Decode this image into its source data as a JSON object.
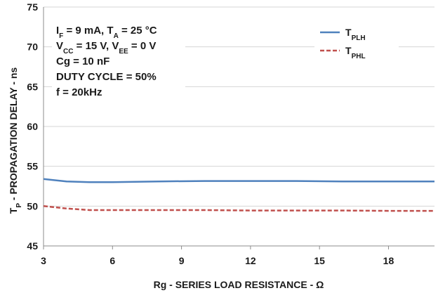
{
  "chart_data": {
    "type": "line",
    "xlabel": "Rg - SERIES LOAD RESISTANCE - Ω",
    "ylabel": {
      "main": "T",
      "sub": "P",
      "rest": " - PROPAGATION DELAY - ns"
    },
    "xlim": [
      3,
      20
    ],
    "ylim": [
      45,
      75
    ],
    "x_ticks": [
      3,
      6,
      9,
      12,
      15,
      18
    ],
    "y_ticks": [
      45,
      50,
      55,
      60,
      65,
      70,
      75
    ],
    "grid": "horizontal",
    "legend_position": "top-right",
    "annotations": [
      [
        {
          "t": "I"
        },
        {
          "t": "F",
          "sub": true
        },
        {
          "t": " = 9 mA, T"
        },
        {
          "t": "A",
          "sub": true
        },
        {
          "t": " = 25 °C"
        }
      ],
      [
        {
          "t": "V"
        },
        {
          "t": "CC",
          "sub": true
        },
        {
          "t": " = 15 V, V"
        },
        {
          "t": "EE",
          "sub": true
        },
        {
          "t": " = 0 V"
        }
      ],
      [
        {
          "t": "Cg = 10 nF"
        }
      ],
      [
        {
          "t": "DUTY CYCLE = 50%"
        }
      ],
      [
        {
          "t": "f = 20kHz"
        }
      ]
    ],
    "series": [
      {
        "name": {
          "main": "T",
          "sub": "PLH"
        },
        "color": "#4f81bd",
        "dash": "solid",
        "x": [
          3,
          4,
          5,
          6,
          8,
          10,
          12,
          14,
          16,
          18,
          20
        ],
        "values": [
          53.4,
          53.1,
          53.0,
          53.0,
          53.1,
          53.15,
          53.15,
          53.15,
          53.1,
          53.1,
          53.1
        ]
      },
      {
        "name": {
          "main": "T",
          "sub": "PHL"
        },
        "color": "#c0504d",
        "dash": "dashed",
        "x": [
          3,
          4,
          5,
          6,
          8,
          10,
          12,
          14,
          16,
          18,
          20
        ],
        "values": [
          50.0,
          49.7,
          49.5,
          49.5,
          49.5,
          49.5,
          49.45,
          49.45,
          49.45,
          49.4,
          49.4
        ]
      }
    ]
  }
}
